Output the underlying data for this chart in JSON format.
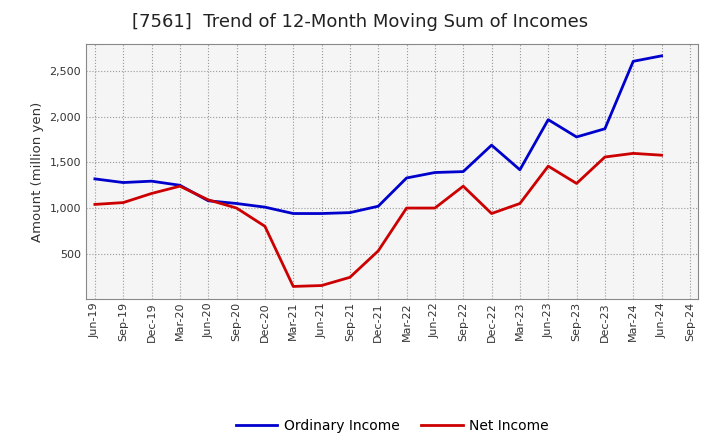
{
  "title": "[7561]  Trend of 12-Month Moving Sum of Incomes",
  "ylabel": "Amount (million yen)",
  "x_labels": [
    "Jun-19",
    "Sep-19",
    "Dec-19",
    "Mar-20",
    "Jun-20",
    "Sep-20",
    "Dec-20",
    "Mar-21",
    "Jun-21",
    "Sep-21",
    "Dec-21",
    "Mar-22",
    "Jun-22",
    "Sep-22",
    "Dec-22",
    "Mar-23",
    "Jun-23",
    "Sep-23",
    "Dec-23",
    "Mar-24",
    "Jun-24",
    "Sep-24"
  ],
  "ordinary_income": [
    1320,
    1280,
    1295,
    1250,
    1080,
    1050,
    1010,
    940,
    940,
    950,
    1020,
    1330,
    1390,
    1400,
    1690,
    1420,
    1970,
    1780,
    1870,
    2610,
    2670,
    null
  ],
  "net_income": [
    1040,
    1060,
    1160,
    1240,
    1090,
    1000,
    800,
    140,
    150,
    240,
    530,
    1000,
    1000,
    1240,
    940,
    1050,
    1460,
    1270,
    1560,
    1600,
    1580,
    null
  ],
  "ordinary_color": "#0000cc",
  "net_color": "#cc0000",
  "ylim": [
    0,
    2800
  ],
  "yticks": [
    500,
    1000,
    1500,
    2000,
    2500
  ],
  "background_color": "#ffffff",
  "plot_bg_color": "#f5f5f5",
  "grid_color": "#999999",
  "title_fontsize": 13,
  "label_fontsize": 9.5,
  "tick_fontsize": 8,
  "legend_fontsize": 10
}
